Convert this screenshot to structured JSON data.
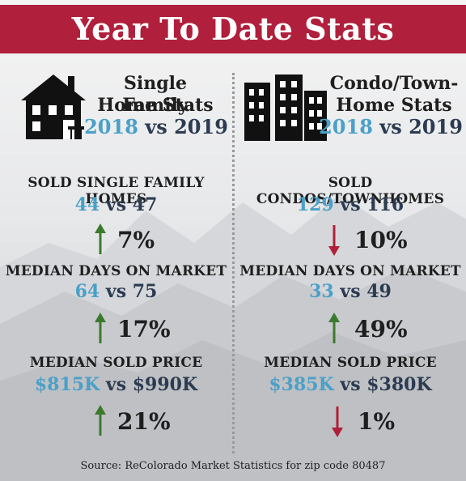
{
  "banner": {
    "title": "Year To Date Stats"
  },
  "left": {
    "icon": "house-icon",
    "title_line1": "Single Family",
    "title_line2": "Home Stats",
    "year_a": "2018",
    "vs": "vs",
    "year_b": "2019",
    "stats": [
      {
        "label": "SOLD SINGLE FAMILY HOMES",
        "value_a": "44",
        "value_b": "47",
        "direction": "up",
        "change": "7%"
      },
      {
        "label": "MEDIAN DAYS ON MARKET",
        "value_a": "64",
        "value_b": "75",
        "direction": "up",
        "change": "17%"
      },
      {
        "label": "MEDIAN SOLD PRICE",
        "value_a": "$815K",
        "value_b": "$990K",
        "direction": "up",
        "change": "21%"
      }
    ]
  },
  "right": {
    "icon": "condo-buildings-icon",
    "title_line1": "Condo/Town-",
    "title_line2": "Home Stats",
    "year_a": "2018",
    "vs": "vs",
    "year_b": "2019",
    "stats": [
      {
        "label": "SOLD CONDOS/TOWNHOMES",
        "value_a": "129",
        "value_b": "116",
        "direction": "down",
        "change": "10%"
      },
      {
        "label": "MEDIAN DAYS ON MARKET",
        "value_a": "33",
        "value_b": "49",
        "direction": "up",
        "change": "49%"
      },
      {
        "label": "MEDIAN SOLD PRICE",
        "value_a": "$385K",
        "value_b": "$380K",
        "direction": "down",
        "change": "1%"
      }
    ]
  },
  "colors": {
    "banner": "#b01f3b",
    "year_a": "#4aa0c8",
    "year_b": "#2b3b52",
    "up_arrow": "#3b7a2e",
    "down_arrow": "#b01f3b"
  },
  "footer": {
    "source": "Source: ReColorado Market Statistics for zip code 80487"
  }
}
